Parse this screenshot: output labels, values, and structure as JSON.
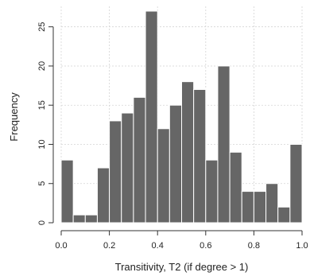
{
  "chart_data": {
    "type": "bar",
    "subtype": "histogram",
    "title": "",
    "xlabel": "Transitivity, T2 (if degree > 1)",
    "ylabel": "Frequency",
    "bin_edges": [
      0.0,
      0.05,
      0.1,
      0.15,
      0.2,
      0.25,
      0.3,
      0.35,
      0.4,
      0.45,
      0.5,
      0.55,
      0.6,
      0.65,
      0.7,
      0.75,
      0.8,
      0.85,
      0.9,
      0.95,
      1.0
    ],
    "values": [
      8,
      1,
      1,
      7,
      13,
      14,
      16,
      27,
      12,
      15,
      18,
      17,
      8,
      20,
      9,
      4,
      4,
      5,
      2,
      10
    ],
    "xlim": [
      0,
      1
    ],
    "ylim": [
      0,
      27
    ],
    "x_ticks": [
      0.0,
      0.2,
      0.4,
      0.6,
      0.8,
      1.0
    ],
    "x_tick_labels": [
      "0.0",
      "0.2",
      "0.4",
      "0.6",
      "0.8",
      "1.0"
    ],
    "y_ticks": [
      0,
      5,
      10,
      15,
      20,
      25
    ],
    "y_tick_labels": [
      "0",
      "5",
      "10",
      "15",
      "20",
      "25"
    ],
    "grid": true,
    "bar_color": "#666666",
    "grid_color": "#d4d4d4"
  }
}
